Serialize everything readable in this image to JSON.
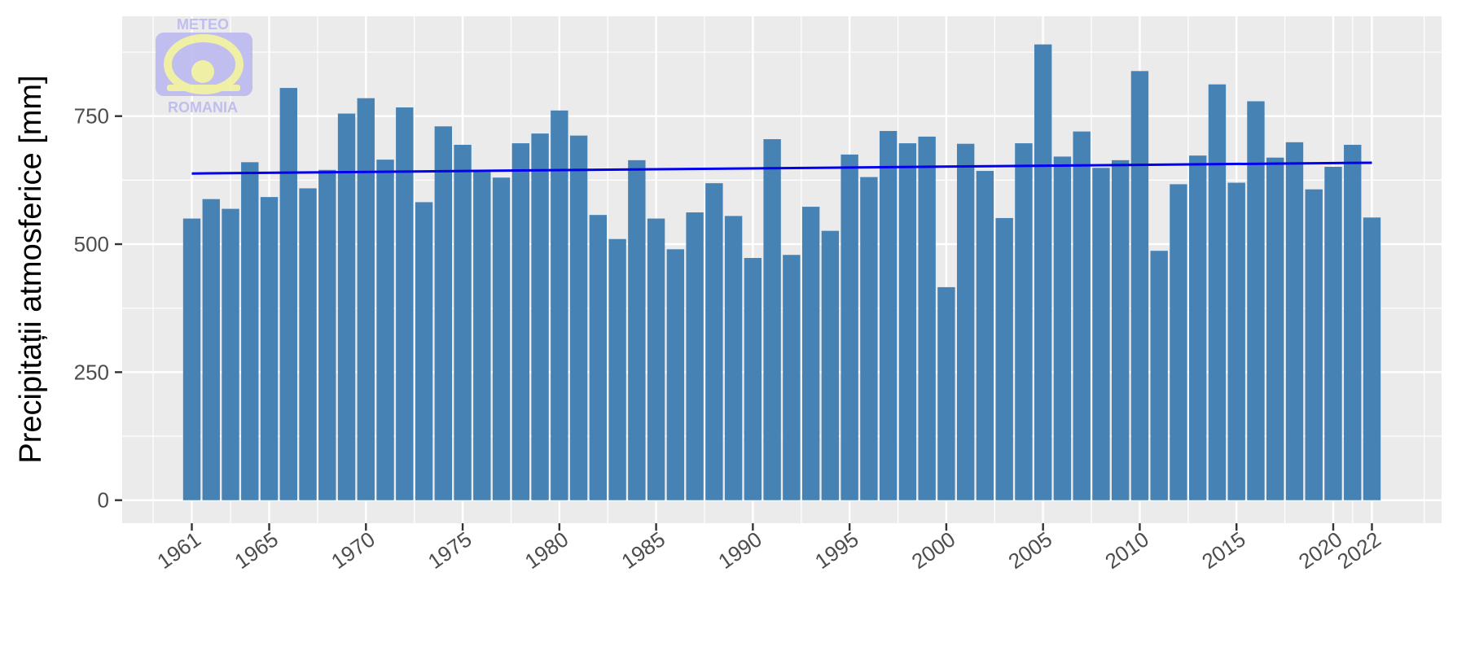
{
  "chart_data": {
    "type": "bar",
    "ylabel": "Precipitații atmosferice [mm]",
    "xlabel": "",
    "title": "",
    "ylim": [
      -45,
      945
    ],
    "xlim": [
      1957.4,
      2025.6
    ],
    "yticks": [
      0,
      250,
      500,
      750
    ],
    "xticks": [
      1961,
      1965,
      1970,
      1975,
      1980,
      1985,
      1990,
      1995,
      2000,
      2005,
      2010,
      2015,
      2020,
      2022
    ],
    "grid": true,
    "legend": "none",
    "bar_color": "#4682B4",
    "panel_color": "#EBEBEB",
    "trend_color": "#0000EE",
    "x": [
      1961,
      1962,
      1963,
      1964,
      1965,
      1966,
      1967,
      1968,
      1969,
      1970,
      1971,
      1972,
      1973,
      1974,
      1975,
      1976,
      1977,
      1978,
      1979,
      1980,
      1981,
      1982,
      1983,
      1984,
      1985,
      1986,
      1987,
      1988,
      1989,
      1990,
      1991,
      1992,
      1993,
      1994,
      1995,
      1996,
      1997,
      1998,
      1999,
      2000,
      2001,
      2002,
      2003,
      2004,
      2005,
      2006,
      2007,
      2008,
      2009,
      2010,
      2011,
      2012,
      2013,
      2014,
      2015,
      2016,
      2017,
      2018,
      2019,
      2020,
      2021,
      2022
    ],
    "values": [
      550,
      588,
      569,
      660,
      592,
      805,
      609,
      645,
      755,
      785,
      665,
      767,
      582,
      730,
      694,
      641,
      630,
      697,
      716,
      761,
      712,
      557,
      510,
      664,
      550,
      490,
      562,
      619,
      555,
      473,
      705,
      479,
      573,
      526,
      675,
      631,
      721,
      697,
      710,
      416,
      696,
      643,
      551,
      697,
      890,
      671,
      720,
      649,
      664,
      838,
      487,
      617,
      673,
      812,
      620,
      779,
      669,
      699,
      607,
      651,
      694,
      552
    ],
    "trend": {
      "x": [
        1961,
        2022
      ],
      "y": [
        638,
        659
      ]
    }
  },
  "watermark": {
    "top_text": "METEO",
    "bottom_text": "ROMANIA"
  }
}
